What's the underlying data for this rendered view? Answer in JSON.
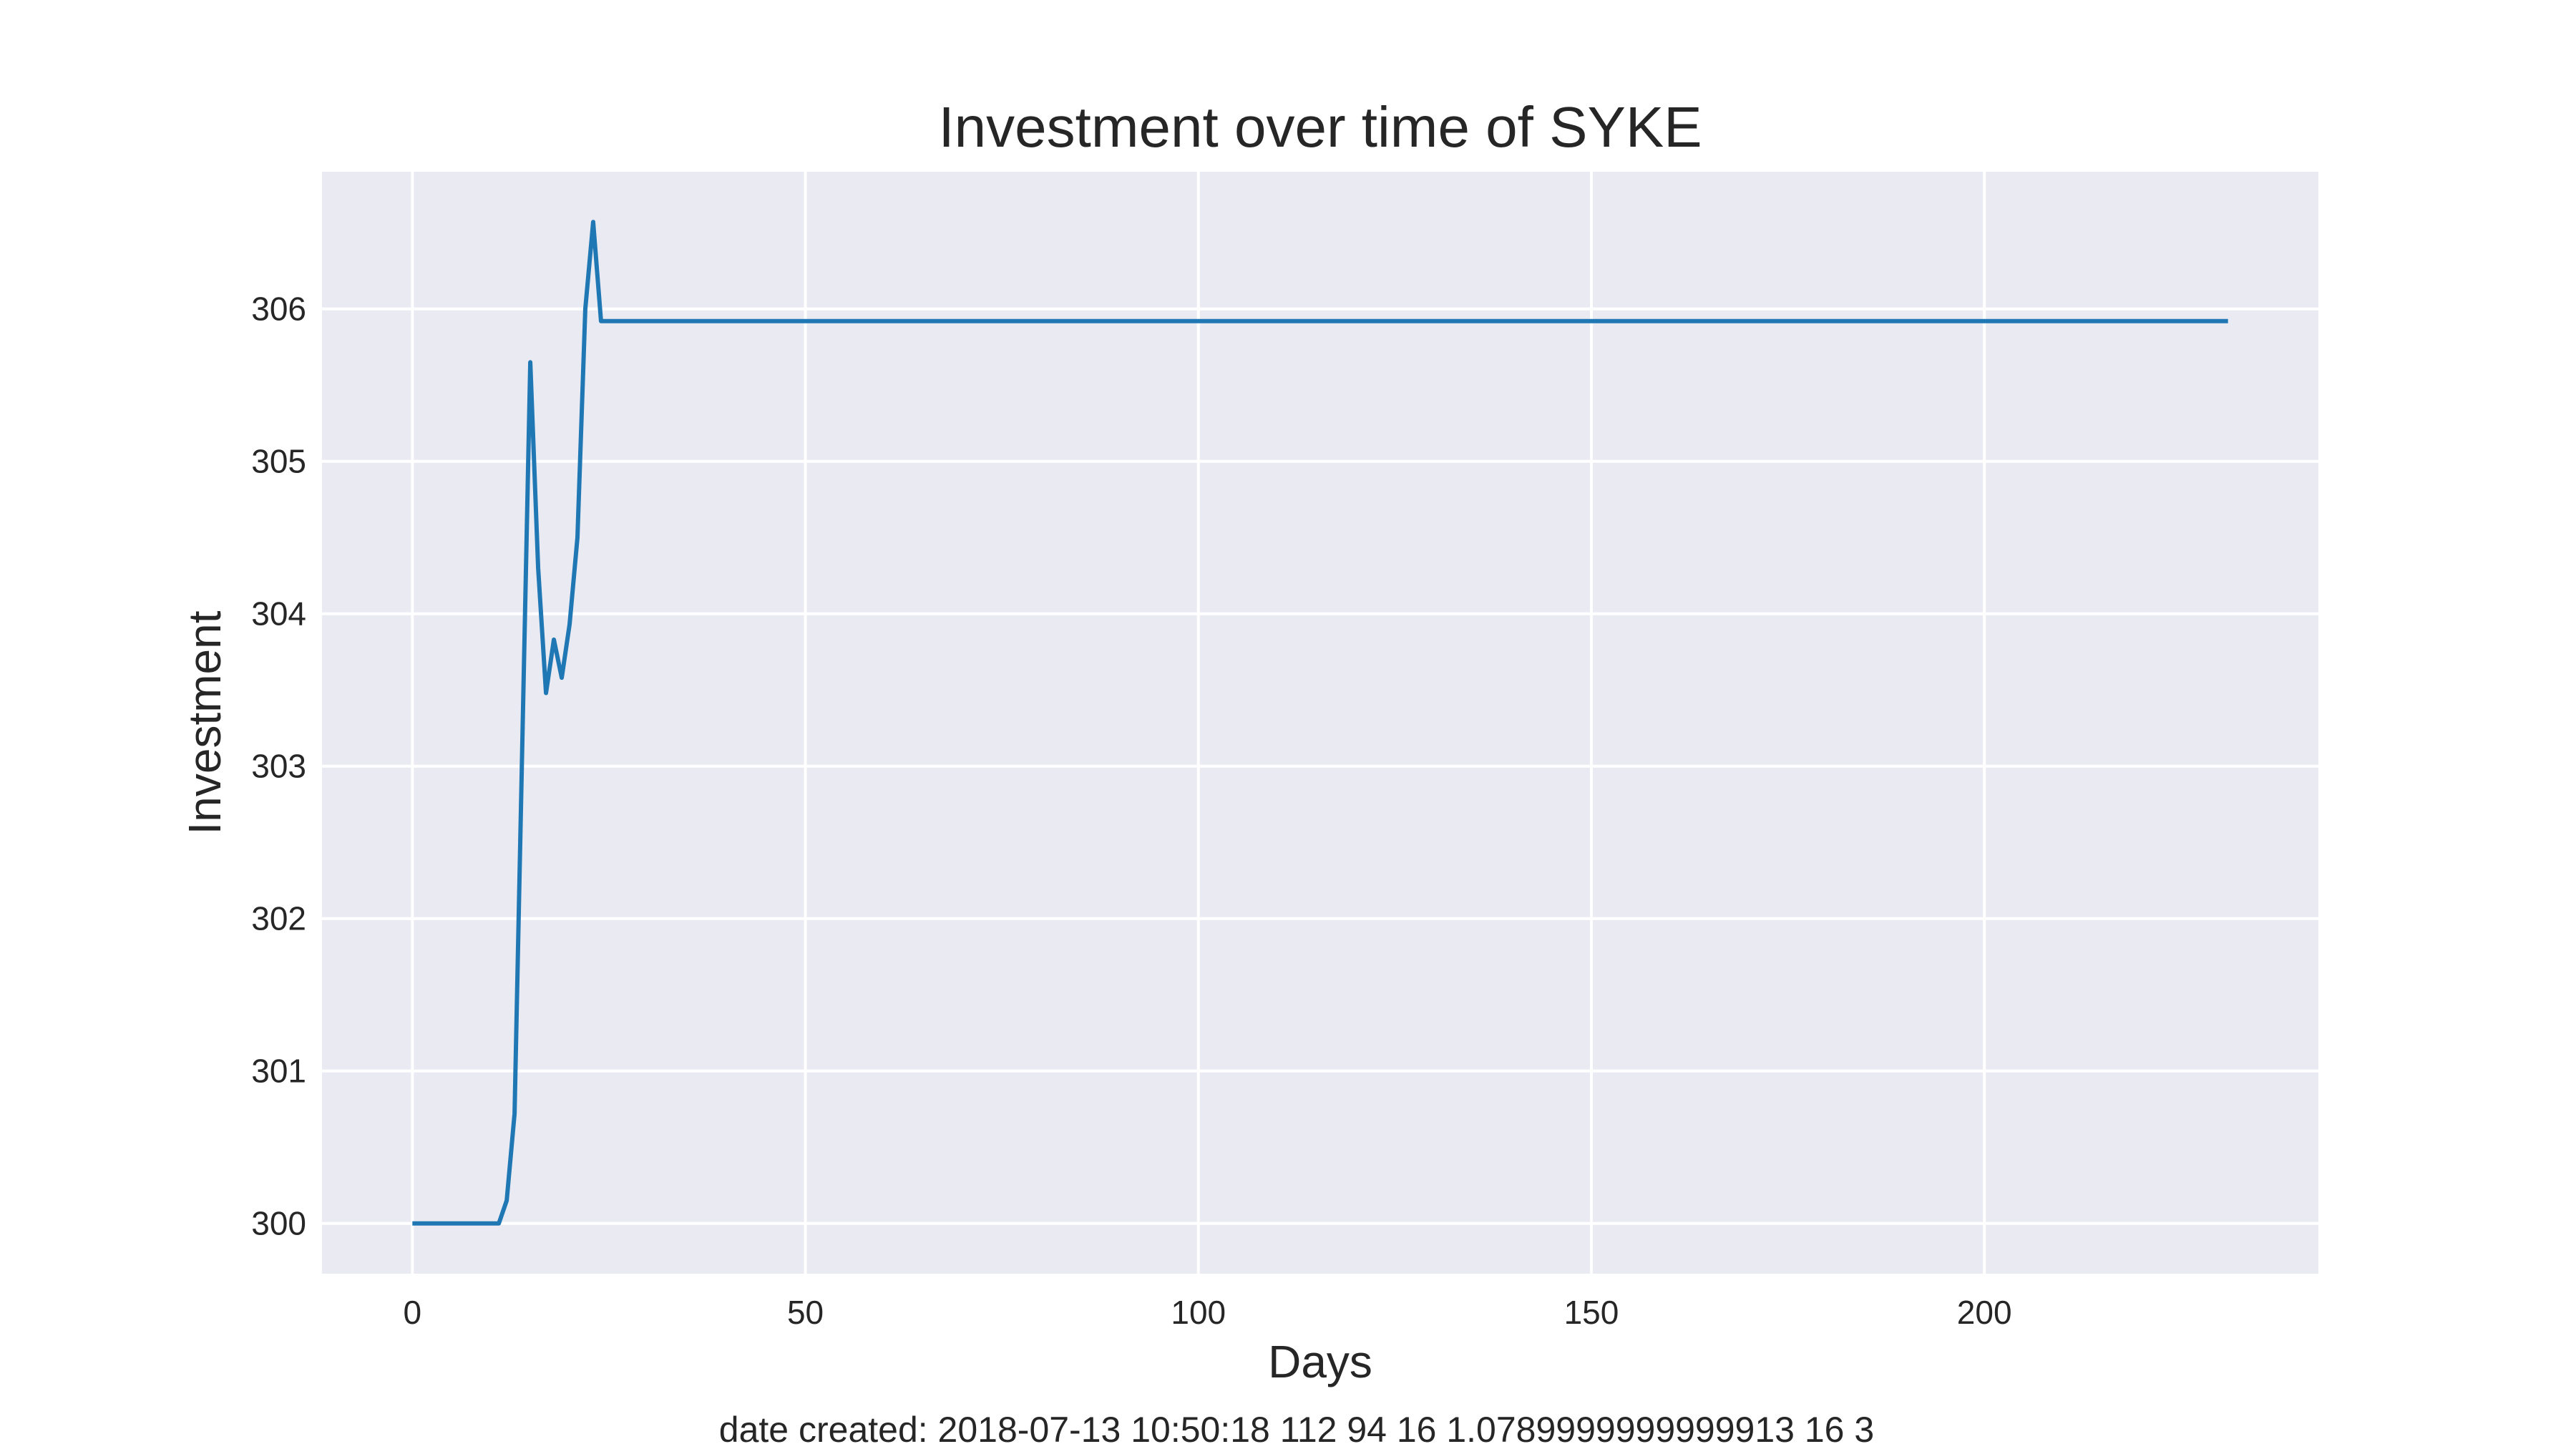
{
  "chart_data": {
    "type": "line",
    "title": "Investment over time of SYKE",
    "xlabel": "Days",
    "ylabel": "Investment",
    "xlim": [
      -11.5,
      242.5
    ],
    "ylim": [
      299.67,
      306.9
    ],
    "xticks": [
      0,
      50,
      100,
      150,
      200
    ],
    "yticks": [
      300,
      301,
      302,
      303,
      304,
      305,
      306
    ],
    "grid": true,
    "legend": "none",
    "colors": {
      "background": "#eaeaf2",
      "grid": "#ffffff",
      "line": "#1f77b4"
    },
    "series": [
      {
        "x": [
          0,
          11,
          12,
          13,
          15,
          16,
          17,
          18,
          19,
          20,
          21,
          22,
          23,
          24,
          231
        ],
        "y": [
          300.0,
          300.0,
          300.15,
          300.72,
          305.65,
          304.3,
          303.48,
          303.83,
          303.58,
          303.93,
          304.5,
          306.0,
          306.57,
          305.92,
          305.92
        ]
      }
    ]
  },
  "footer": {
    "text": "date created: 2018-07-13 10:50:18 112 94 16 1.0789999999999913 16 3"
  }
}
